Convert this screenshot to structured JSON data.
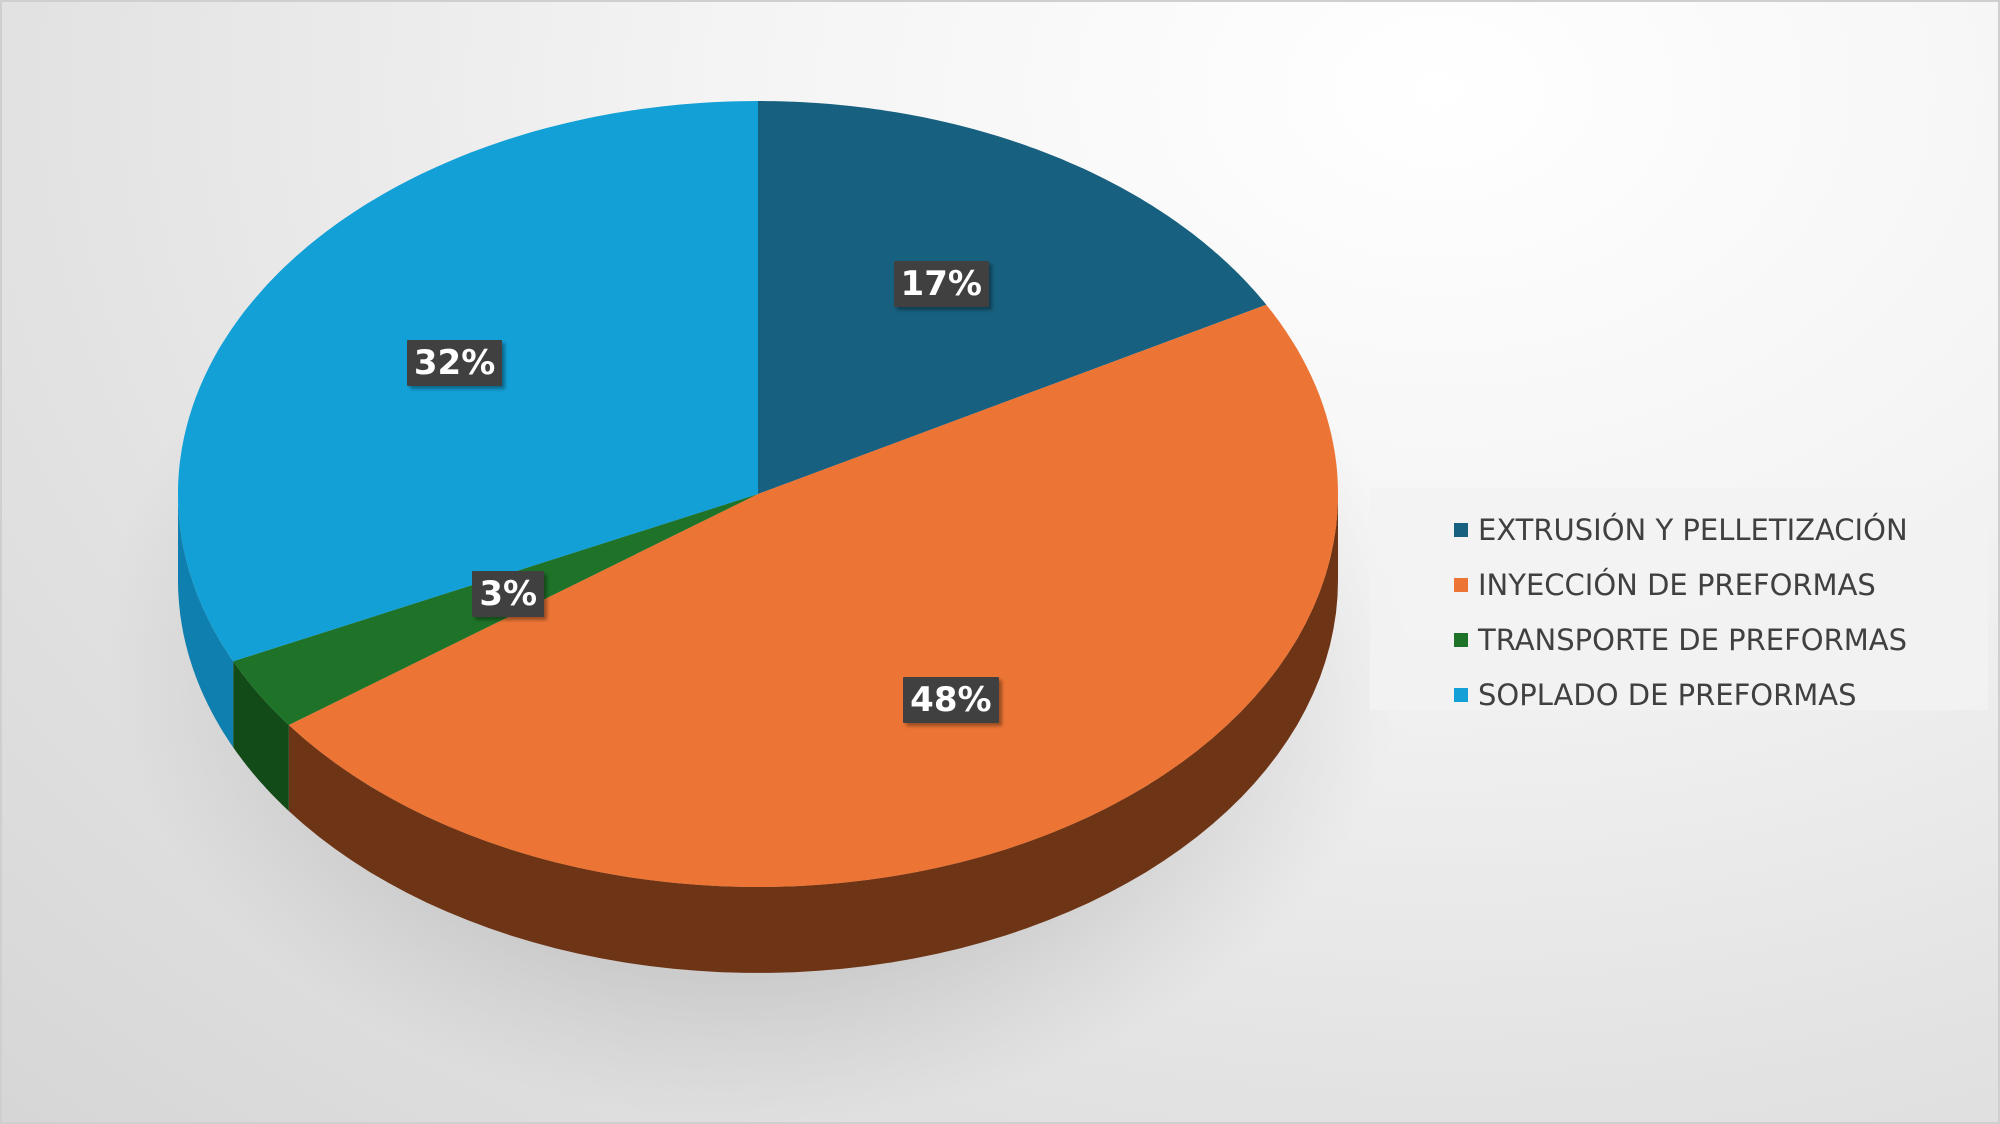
{
  "chart_data": {
    "type": "pie",
    "style": "3d",
    "categories": [
      "EXTRUSIÓN Y PELLETIZACIÓN",
      "INYECCIÓN DE PREFORMAS",
      "TRANSPORTE DE PREFORMAS",
      "SOPLADO DE PREFORMAS"
    ],
    "values": [
      17,
      48,
      3,
      32
    ],
    "data_labels": [
      "17%",
      "48%",
      "3%",
      "32%"
    ],
    "colors": [
      "#17607F",
      "#EC7535",
      "#1F7328",
      "#13A0D6"
    ],
    "side_colors": [
      "#0F4259",
      "#6E3416",
      "#124A18",
      "#0E7FAE"
    ],
    "legend_position": "right"
  }
}
